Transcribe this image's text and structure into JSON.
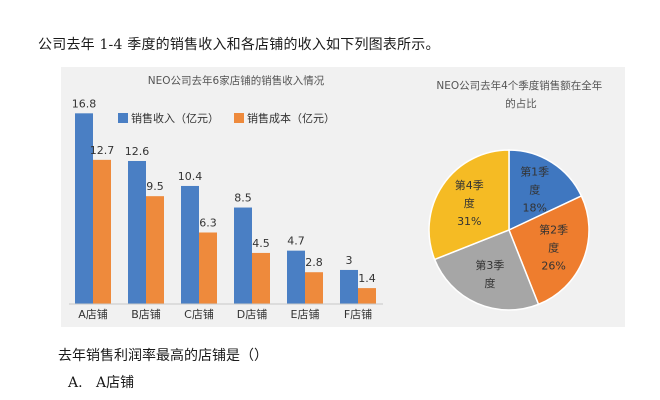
{
  "intro_text": "公司去年 1-4 季度的销售收入和各店铺的收入如下列图表所示。",
  "question": "去年销售利润率最高的店铺是（）",
  "options": [
    {
      "letter": "A.",
      "text": "A店铺"
    }
  ],
  "colors": {
    "revenue": "#4a7fc4",
    "cost": "#ee8a3c",
    "pie_q1": "#3f77c0",
    "pie_q2": "#ee7d2e",
    "pie_q3": "#a6a6a6",
    "pie_q4": "#f5bb24"
  },
  "chart_data": [
    {
      "type": "bar",
      "title": "NEO公司去年6家店铺的销售收入情况",
      "categories": [
        "A店铺",
        "B店铺",
        "C店铺",
        "D店铺",
        "E店铺",
        "F店铺"
      ],
      "series": [
        {
          "name": "销售收入（亿元）",
          "values": [
            16.8,
            12.6,
            10.4,
            8.5,
            4.7,
            3
          ]
        },
        {
          "name": "销售成本（亿元）",
          "values": [
            12.7,
            9.5,
            6.3,
            4.5,
            2.8,
            1.4
          ]
        }
      ],
      "ylim": [
        0,
        18
      ],
      "grid": false,
      "legend": "top-left"
    },
    {
      "type": "pie",
      "title": "NEO公司去年4个季度销售额在全年的占比",
      "slices": [
        {
          "label": "第1季度",
          "value": 18,
          "display": "18%"
        },
        {
          "label": "第2季度",
          "value": 26,
          "display": "26%"
        },
        {
          "label": "第3季度",
          "value": 25,
          "display": ""
        },
        {
          "label": "第4季度",
          "value": 31,
          "display": "31%"
        }
      ]
    }
  ]
}
